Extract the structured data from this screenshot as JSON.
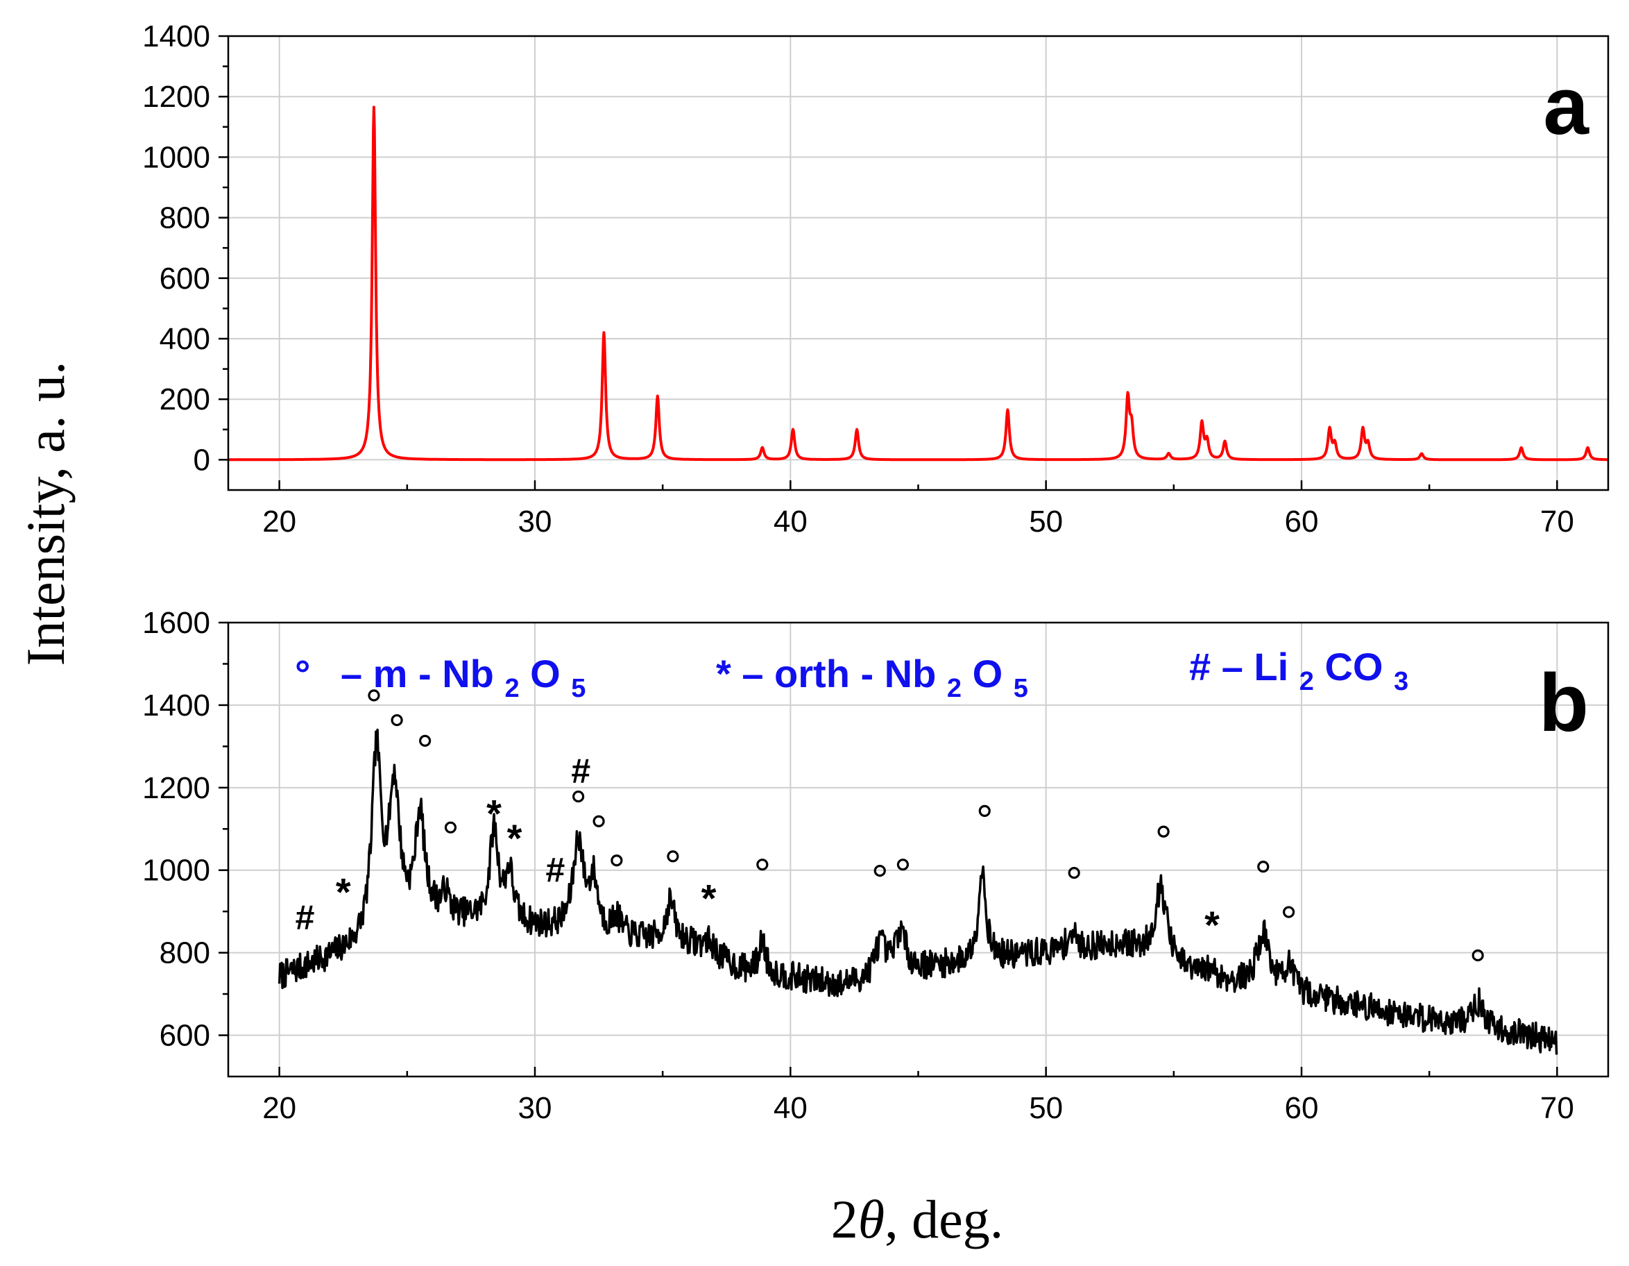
{
  "chart_data": [
    {
      "panel": "a",
      "type": "line",
      "color": "#ff0000",
      "xlim": [
        18,
        72
      ],
      "ylim": [
        -100,
        1400
      ],
      "xticks": [
        20,
        30,
        40,
        50,
        60,
        70
      ],
      "yticks": [
        0,
        200,
        400,
        600,
        800,
        1000,
        1200,
        1400
      ],
      "x_range": [
        18,
        72
      ],
      "baseline": 0,
      "peaks": [
        {
          "x": 23.7,
          "y": 1165
        },
        {
          "x": 32.7,
          "y": 420
        },
        {
          "x": 34.8,
          "y": 210
        },
        {
          "x": 38.9,
          "y": 40
        },
        {
          "x": 40.1,
          "y": 100
        },
        {
          "x": 42.6,
          "y": 100
        },
        {
          "x": 48.5,
          "y": 165
        },
        {
          "x": 53.2,
          "y": 200
        },
        {
          "x": 53.35,
          "y": 100
        },
        {
          "x": 54.8,
          "y": 20
        },
        {
          "x": 56.1,
          "y": 120
        },
        {
          "x": 56.3,
          "y": 60
        },
        {
          "x": 57.0,
          "y": 60
        },
        {
          "x": 61.1,
          "y": 100
        },
        {
          "x": 61.3,
          "y": 50
        },
        {
          "x": 62.4,
          "y": 100
        },
        {
          "x": 62.6,
          "y": 50
        },
        {
          "x": 64.7,
          "y": 20
        },
        {
          "x": 68.6,
          "y": 40
        },
        {
          "x": 71.2,
          "y": 40
        }
      ]
    },
    {
      "panel": "b",
      "type": "line",
      "color": "#000000",
      "xlim": [
        18,
        72
      ],
      "ylim": [
        500,
        1600
      ],
      "xticks": [
        20,
        30,
        40,
        50,
        60,
        70
      ],
      "yticks": [
        600,
        800,
        1000,
        1200,
        1400,
        1600
      ],
      "x_range": [
        20,
        70
      ],
      "background": [
        [
          20,
          740
        ],
        [
          23,
          810
        ],
        [
          26,
          890
        ],
        [
          30,
          860
        ],
        [
          33,
          840
        ],
        [
          36,
          820
        ],
        [
          38,
          760
        ],
        [
          42,
          720
        ],
        [
          45,
          760
        ],
        [
          50,
          800
        ],
        [
          53,
          820
        ],
        [
          55,
          760
        ],
        [
          57,
          730
        ],
        [
          60,
          700
        ],
        [
          64,
          650
        ],
        [
          67,
          620
        ],
        [
          70,
          585
        ]
      ],
      "peaks": [
        {
          "x": 23.8,
          "y": 440,
          "w": 0.22
        },
        {
          "x": 24.5,
          "y": 340,
          "w": 0.25
        },
        {
          "x": 25.5,
          "y": 250,
          "w": 0.22
        },
        {
          "x": 26.5,
          "y": 50,
          "w": 0.15
        },
        {
          "x": 28.4,
          "y": 220,
          "w": 0.2
        },
        {
          "x": 29.0,
          "y": 120,
          "w": 0.2
        },
        {
          "x": 31.7,
          "y": 220,
          "w": 0.25
        },
        {
          "x": 32.3,
          "y": 120,
          "w": 0.2
        },
        {
          "x": 33.2,
          "y": 40,
          "w": 0.2
        },
        {
          "x": 35.3,
          "y": 100,
          "w": 0.2
        },
        {
          "x": 36.8,
          "y": 30,
          "w": 0.3
        },
        {
          "x": 38.9,
          "y": 80,
          "w": 0.15
        },
        {
          "x": 43.5,
          "y": 80,
          "w": 0.25
        },
        {
          "x": 44.3,
          "y": 100,
          "w": 0.25
        },
        {
          "x": 47.5,
          "y": 220,
          "w": 0.18
        },
        {
          "x": 51.0,
          "y": 40,
          "w": 0.2
        },
        {
          "x": 54.5,
          "y": 180,
          "w": 0.3
        },
        {
          "x": 56.5,
          "y": 20,
          "w": 0.2
        },
        {
          "x": 58.5,
          "y": 130,
          "w": 0.3
        },
        {
          "x": 59.5,
          "y": 60,
          "w": 0.2
        },
        {
          "x": 66.9,
          "y": 60,
          "w": 0.25
        }
      ],
      "noise": 35,
      "markers": [
        {
          "symbol": "#",
          "x": 21.0,
          "y": 860
        },
        {
          "symbol": "*",
          "x": 22.5,
          "y": 945
        },
        {
          "symbol": "o",
          "x": 23.7,
          "y": 1400
        },
        {
          "symbol": "o",
          "x": 24.6,
          "y": 1340
        },
        {
          "symbol": "o",
          "x": 25.7,
          "y": 1290
        },
        {
          "symbol": "o",
          "x": 26.7,
          "y": 1080
        },
        {
          "symbol": "*",
          "x": 28.4,
          "y": 1135
        },
        {
          "symbol": "*",
          "x": 29.2,
          "y": 1075
        },
        {
          "symbol": "#",
          "x": 30.8,
          "y": 975
        },
        {
          "symbol": "#",
          "x": 31.8,
          "y": 1215
        },
        {
          "symbol": "o",
          "x": 31.7,
          "y": 1155
        },
        {
          "symbol": "o",
          "x": 32.5,
          "y": 1095
        },
        {
          "symbol": "o",
          "x": 33.2,
          "y": 1000
        },
        {
          "symbol": "o",
          "x": 35.4,
          "y": 1010
        },
        {
          "symbol": "*",
          "x": 36.8,
          "y": 930
        },
        {
          "symbol": "o",
          "x": 38.9,
          "y": 990
        },
        {
          "symbol": "o",
          "x": 43.5,
          "y": 975
        },
        {
          "symbol": "o",
          "x": 44.4,
          "y": 990
        },
        {
          "symbol": "o",
          "x": 47.6,
          "y": 1120
        },
        {
          "symbol": "o",
          "x": 51.1,
          "y": 970
        },
        {
          "symbol": "o",
          "x": 54.6,
          "y": 1070
        },
        {
          "symbol": "*",
          "x": 56.5,
          "y": 865
        },
        {
          "symbol": "o",
          "x": 58.5,
          "y": 985
        },
        {
          "symbol": "o",
          "x": 59.5,
          "y": 875
        },
        {
          "symbol": "o",
          "x": 66.9,
          "y": 770
        }
      ]
    }
  ],
  "panel_labels": {
    "a": "a",
    "b": "b"
  },
  "y_axis_title": "Intensity, a. u.",
  "x_axis_title_num": "2",
  "x_axis_title_symbol": "θ",
  "x_axis_title_rest": ", deg.",
  "legend": {
    "m_symbol": "°",
    "m_dash": "– m - Nb",
    "m_sub1": "2",
    "m_o": "O",
    "m_sub2": "5",
    "orth_text": "* – orth - Nb",
    "orth_sub1": "2",
    "orth_o": "O",
    "orth_sub2": "5",
    "li_text": "# – Li",
    "li_sub1": "2",
    "li_co": "CO",
    "li_sub2": "3"
  }
}
